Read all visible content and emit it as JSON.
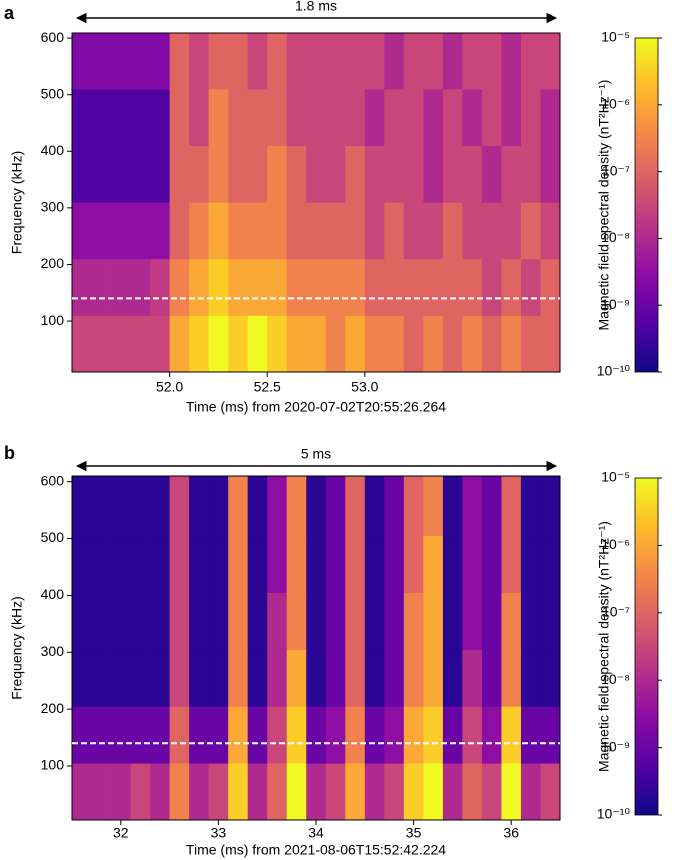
{
  "chart_data": [
    {
      "type": "heatmap",
      "panel": "a",
      "span_label": "1.8 ms",
      "xlabel": "Time (ms) from 2020-07-02T20:55:26.264",
      "ylabel": "Frequency (kHz)",
      "xlim": [
        51.5,
        54.0
      ],
      "ylim": [
        10,
        609
      ],
      "xticks": [
        {
          "value": 52,
          "label": "52.0"
        },
        52.5,
        {
          "value": 53,
          "label": "53.0"
        }
      ],
      "yticks": [
        100,
        200,
        300,
        400,
        500,
        600
      ],
      "xbins": [
        51.5,
        51.6,
        51.7,
        51.8,
        51.9,
        52.0,
        52.1,
        52.2,
        52.3,
        52.4,
        52.5,
        52.6,
        52.7,
        52.8,
        52.9,
        53.0,
        53.1,
        53.2,
        53.3,
        53.4,
        53.5,
        53.6,
        53.7,
        53.8,
        53.9,
        54.0
      ],
      "ybins": [
        10,
        110,
        210,
        310,
        410,
        510,
        609
      ],
      "z": [
        [
          3e-08,
          3e-08,
          3e-08,
          3e-08,
          3e-08,
          1e-06,
          3e-06,
          1e-05,
          3e-06,
          1e-05,
          3e-06,
          1e-06,
          1e-06,
          3e-07,
          1e-06,
          3e-07,
          3e-07,
          1e-07,
          3e-07,
          1e-07,
          3e-07,
          1e-07,
          3e-07,
          1e-07,
          1e-07
        ],
        [
          1e-08,
          1e-08,
          1e-08,
          1e-08,
          2e-08,
          3e-07,
          1e-06,
          3e-06,
          1e-06,
          1e-06,
          1e-06,
          3e-07,
          3e-07,
          3e-07,
          3e-07,
          1e-07,
          1e-07,
          1e-07,
          1e-07,
          1e-07,
          1e-07,
          3e-08,
          1e-07,
          3e-08,
          1e-07
        ],
        [
          3e-09,
          3e-09,
          3e-09,
          3e-09,
          3e-09,
          1e-07,
          3e-07,
          1e-06,
          3e-07,
          3e-07,
          3e-07,
          1e-07,
          1e-07,
          1e-07,
          1e-07,
          3e-08,
          1e-07,
          3e-08,
          3e-08,
          1e-07,
          3e-08,
          3e-08,
          3e-08,
          1e-07,
          3e-08
        ],
        [
          5e-10,
          5e-10,
          5e-10,
          5e-10,
          5e-10,
          1e-07,
          1e-07,
          3e-07,
          1e-07,
          1e-07,
          3e-07,
          1e-07,
          3e-08,
          3e-08,
          1e-07,
          3e-08,
          3e-08,
          3e-08,
          1e-08,
          3e-08,
          3e-08,
          1e-08,
          3e-08,
          3e-08,
          1e-08
        ],
        [
          5e-10,
          5e-10,
          5e-10,
          5e-10,
          5e-10,
          1e-07,
          3e-08,
          3e-07,
          1e-07,
          1e-07,
          1e-07,
          3e-08,
          3e-08,
          3e-08,
          3e-08,
          1e-08,
          3e-08,
          3e-08,
          1e-08,
          3e-08,
          1e-08,
          3e-08,
          1e-08,
          3e-08,
          1e-08
        ],
        [
          2e-09,
          2e-09,
          2e-09,
          2e-09,
          2e-09,
          1e-07,
          3e-08,
          1e-07,
          1e-07,
          3e-08,
          1e-07,
          3e-08,
          3e-08,
          3e-08,
          3e-08,
          3e-08,
          1e-08,
          3e-08,
          3e-08,
          1e-08,
          3e-08,
          3e-08,
          1e-08,
          3e-08,
          3e-08
        ]
      ],
      "hline": 140,
      "colormap": "plasma",
      "zscale": "log",
      "zlim": [
        1e-10,
        1e-05
      ],
      "zticks": [
        {
          "value": 1e-10,
          "label": "10⁻¹⁰"
        },
        {
          "value": 1e-09,
          "label": "10⁻⁹"
        },
        {
          "value": 1e-08,
          "label": "10⁻⁸"
        },
        {
          "value": 1e-07,
          "label": "10⁻⁷"
        },
        {
          "value": 1e-06,
          "label": "10⁻⁶"
        },
        {
          "value": 1e-05,
          "label": "10⁻⁵"
        }
      ],
      "colorbar_label": "Magnetic field spectral density (nT²Hz⁻¹)"
    },
    {
      "type": "heatmap",
      "panel": "b",
      "span_label": "5 ms",
      "xlabel": "Time (ms) from 2021-08-06T15:52:42.224",
      "ylabel": "Frequency (kHz)",
      "xlim": [
        31.5,
        36.5
      ],
      "ylim": [
        5,
        610
      ],
      "xticks": [
        32,
        33,
        34,
        35,
        36
      ],
      "yticks": [
        100,
        200,
        300,
        400,
        500,
        600
      ],
      "xbins": [
        31.5,
        31.7,
        31.9,
        32.1,
        32.3,
        32.5,
        32.7,
        32.9,
        33.1,
        33.3,
        33.5,
        33.7,
        33.9,
        34.1,
        34.3,
        34.5,
        34.7,
        34.9,
        35.1,
        35.3,
        35.5,
        35.7,
        35.9,
        36.1,
        36.3,
        36.5
      ],
      "ybins": [
        5,
        105,
        205,
        305,
        405,
        505,
        610
      ],
      "z": [
        [
          1e-08,
          1e-08,
          1e-08,
          3e-08,
          1e-08,
          3e-07,
          1e-08,
          3e-08,
          3e-06,
          1e-08,
          1e-07,
          1e-05,
          1e-08,
          3e-08,
          1e-06,
          1e-08,
          3e-08,
          3e-06,
          1e-05,
          1e-08,
          1e-07,
          3e-08,
          1e-05,
          1e-08,
          3e-08
        ],
        [
          1e-09,
          1e-09,
          1e-09,
          1e-09,
          1e-09,
          1e-07,
          1e-09,
          1e-09,
          1e-06,
          1e-09,
          3e-08,
          3e-06,
          1e-09,
          3e-09,
          3e-07,
          1e-09,
          3e-09,
          1e-06,
          3e-06,
          1e-09,
          3e-08,
          3e-09,
          3e-06,
          1e-09,
          1e-09
        ],
        [
          2e-10,
          2e-10,
          2e-10,
          2e-10,
          2e-10,
          3e-08,
          2e-10,
          2e-10,
          3e-07,
          2e-10,
          1e-08,
          1e-06,
          2e-10,
          1e-09,
          1e-07,
          2e-10,
          1e-09,
          3e-07,
          1e-06,
          2e-10,
          1e-08,
          1e-09,
          3e-07,
          2e-10,
          2e-10
        ],
        [
          2e-10,
          2e-10,
          2e-10,
          2e-10,
          2e-10,
          3e-08,
          2e-10,
          2e-10,
          3e-07,
          2e-10,
          1e-08,
          3e-07,
          2e-10,
          1e-09,
          1e-07,
          2e-10,
          1e-09,
          3e-07,
          1e-06,
          2e-10,
          3e-09,
          1e-09,
          3e-07,
          2e-10,
          2e-10
        ],
        [
          2e-10,
          2e-10,
          2e-10,
          2e-10,
          2e-10,
          3e-08,
          2e-10,
          2e-10,
          3e-07,
          2e-10,
          3e-09,
          3e-07,
          2e-10,
          1e-09,
          1e-07,
          2e-10,
          1e-09,
          1e-07,
          1e-06,
          2e-10,
          3e-09,
          1e-09,
          1e-07,
          2e-10,
          2e-10
        ],
        [
          2e-10,
          2e-10,
          2e-10,
          2e-10,
          2e-10,
          3e-08,
          2e-10,
          2e-10,
          3e-07,
          2e-10,
          3e-09,
          3e-07,
          2e-10,
          1e-09,
          1e-07,
          2e-10,
          1e-09,
          1e-07,
          3e-07,
          2e-10,
          3e-09,
          1e-09,
          1e-07,
          2e-10,
          2e-10
        ]
      ],
      "hline": 140,
      "colormap": "plasma",
      "zscale": "log",
      "zlim": [
        1e-10,
        1e-05
      ],
      "zticks": [
        {
          "value": 1e-10,
          "label": "10⁻¹⁰"
        },
        {
          "value": 1e-09,
          "label": "10⁻⁹"
        },
        {
          "value": 1e-08,
          "label": "10⁻⁸"
        },
        {
          "value": 1e-07,
          "label": "10⁻⁷"
        },
        {
          "value": 1e-06,
          "label": "10⁻⁶"
        },
        {
          "value": 1e-05,
          "label": "10⁻⁵"
        }
      ],
      "colorbar_label": "Magnetic field spectral density (nT²Hz⁻¹)"
    }
  ]
}
